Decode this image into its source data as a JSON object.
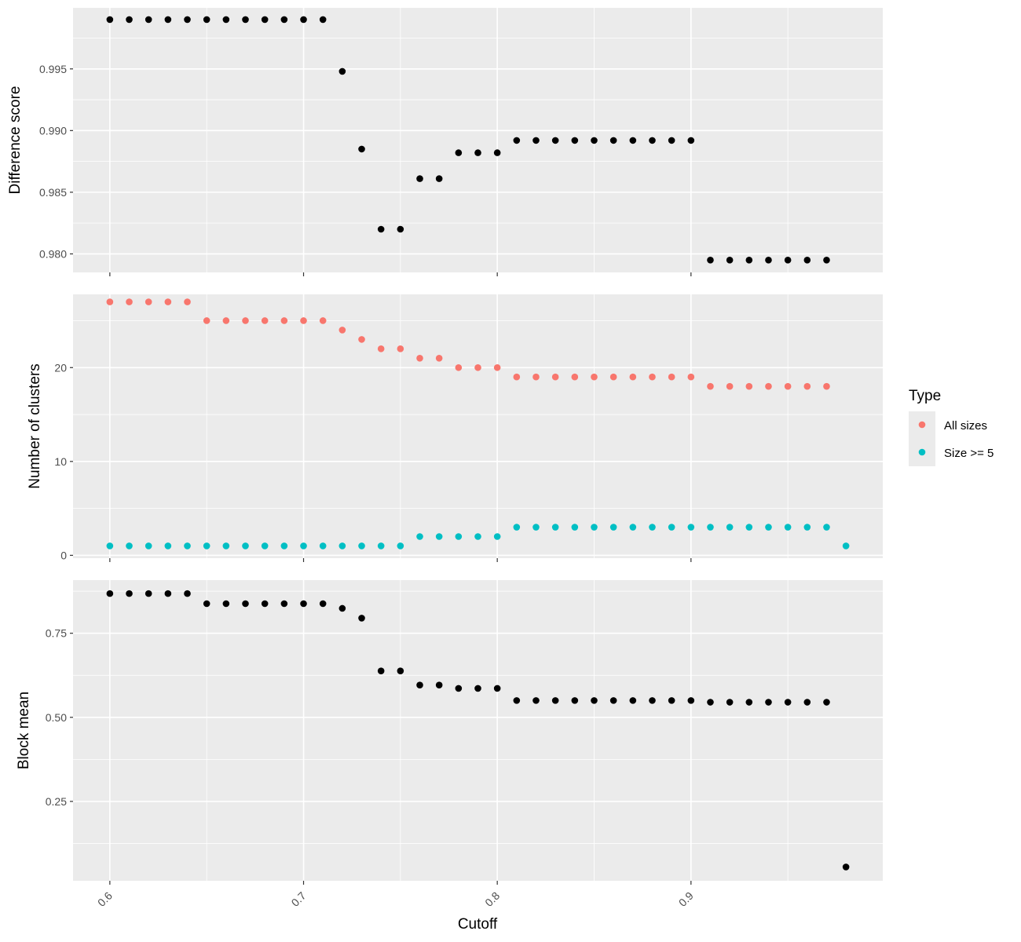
{
  "chart_data": {
    "type": "scatter",
    "xlabel": "Cutoff",
    "x_ticks": [
      "0.6",
      "0.7",
      "0.8",
      "0.9"
    ],
    "x_tick_values": [
      0.6,
      0.7,
      0.8,
      0.9
    ],
    "xlim": [
      0.581,
      0.999
    ],
    "colors": {
      "all_sizes": "#F8766D",
      "size_ge_5": "#00BFC4",
      "single": "#000000"
    },
    "legend": {
      "title": "Type",
      "entries": [
        {
          "label": "All sizes",
          "color": "#F8766D"
        },
        {
          "label": "Size >= 5",
          "color": "#00BFC4"
        }
      ],
      "placement": "right"
    },
    "panels": [
      {
        "ylabel": "Difference score",
        "ylim": [
          0.9785,
          0.99995
        ],
        "y_ticks": [
          "0.980",
          "0.985",
          "0.990",
          "0.995"
        ],
        "y_tick_values": [
          0.98,
          0.985,
          0.99,
          0.995
        ],
        "series": [
          {
            "color": "#000000",
            "x": [
              0.6,
              0.61,
              0.62,
              0.63,
              0.64,
              0.65,
              0.66,
              0.67,
              0.68,
              0.69,
              0.7,
              0.71,
              0.72,
              0.73,
              0.74,
              0.75,
              0.76,
              0.77,
              0.78,
              0.79,
              0.8,
              0.81,
              0.82,
              0.83,
              0.84,
              0.85,
              0.86,
              0.87,
              0.88,
              0.89,
              0.9,
              0.91,
              0.92,
              0.93,
              0.94,
              0.95,
              0.96,
              0.97
            ],
            "y": [
              0.999,
              0.999,
              0.999,
              0.999,
              0.999,
              0.999,
              0.999,
              0.999,
              0.999,
              0.999,
              0.999,
              0.999,
              0.9948,
              0.9885,
              0.982,
              0.982,
              0.9861,
              0.9861,
              0.9882,
              0.9882,
              0.9882,
              0.9892,
              0.9892,
              0.9892,
              0.9892,
              0.9892,
              0.9892,
              0.9892,
              0.9892,
              0.9892,
              0.9892,
              0.9795,
              0.9795,
              0.9795,
              0.9795,
              0.9795,
              0.9795,
              0.9795
            ]
          }
        ]
      },
      {
        "ylabel": "Number of clusters",
        "ylim": [
          -0.3,
          27.8
        ],
        "y_ticks": [
          "0",
          "10",
          "20"
        ],
        "y_tick_values": [
          0,
          10,
          20
        ],
        "series": [
          {
            "name": "All sizes",
            "color": "#F8766D",
            "x": [
              0.6,
              0.61,
              0.62,
              0.63,
              0.64,
              0.65,
              0.66,
              0.67,
              0.68,
              0.69,
              0.7,
              0.71,
              0.72,
              0.73,
              0.74,
              0.75,
              0.76,
              0.77,
              0.78,
              0.79,
              0.8,
              0.81,
              0.82,
              0.83,
              0.84,
              0.85,
              0.86,
              0.87,
              0.88,
              0.89,
              0.9,
              0.91,
              0.92,
              0.93,
              0.94,
              0.95,
              0.96,
              0.97
            ],
            "y": [
              27,
              27,
              27,
              27,
              27,
              25,
              25,
              25,
              25,
              25,
              25,
              25,
              24,
              23,
              22,
              22,
              21,
              21,
              20,
              20,
              20,
              19,
              19,
              19,
              19,
              19,
              19,
              19,
              19,
              19,
              19,
              18,
              18,
              18,
              18,
              18,
              18,
              18
            ]
          },
          {
            "name": "Size >= 5",
            "color": "#00BFC4",
            "x": [
              0.6,
              0.61,
              0.62,
              0.63,
              0.64,
              0.65,
              0.66,
              0.67,
              0.68,
              0.69,
              0.7,
              0.71,
              0.72,
              0.73,
              0.74,
              0.75,
              0.76,
              0.77,
              0.78,
              0.79,
              0.8,
              0.81,
              0.82,
              0.83,
              0.84,
              0.85,
              0.86,
              0.87,
              0.88,
              0.89,
              0.9,
              0.91,
              0.92,
              0.93,
              0.94,
              0.95,
              0.96,
              0.97,
              0.98
            ],
            "y": [
              1,
              1,
              1,
              1,
              1,
              1,
              1,
              1,
              1,
              1,
              1,
              1,
              1,
              1,
              1,
              1,
              2,
              2,
              2,
              2,
              2,
              3,
              3,
              3,
              3,
              3,
              3,
              3,
              3,
              3,
              3,
              3,
              3,
              3,
              3,
              3,
              3,
              3,
              1
            ]
          }
        ]
      },
      {
        "ylabel": "Block mean",
        "ylim": [
          0.014,
          0.908
        ],
        "y_ticks": [
          "0.25",
          "0.50",
          "0.75"
        ],
        "y_tick_values": [
          0.25,
          0.5,
          0.75
        ],
        "series": [
          {
            "color": "#000000",
            "x": [
              0.6,
              0.61,
              0.62,
              0.63,
              0.64,
              0.65,
              0.66,
              0.67,
              0.68,
              0.69,
              0.7,
              0.71,
              0.72,
              0.73,
              0.74,
              0.75,
              0.76,
              0.77,
              0.78,
              0.79,
              0.8,
              0.81,
              0.82,
              0.83,
              0.84,
              0.85,
              0.86,
              0.87,
              0.88,
              0.89,
              0.9,
              0.91,
              0.92,
              0.93,
              0.94,
              0.95,
              0.96,
              0.97,
              0.98
            ],
            "y": [
              0.868,
              0.868,
              0.868,
              0.868,
              0.868,
              0.838,
              0.838,
              0.838,
              0.838,
              0.838,
              0.838,
              0.838,
              0.824,
              0.795,
              0.638,
              0.638,
              0.596,
              0.596,
              0.586,
              0.586,
              0.586,
              0.55,
              0.55,
              0.55,
              0.55,
              0.55,
              0.55,
              0.55,
              0.55,
              0.55,
              0.55,
              0.545,
              0.545,
              0.545,
              0.545,
              0.545,
              0.545,
              0.545,
              0.055
            ]
          }
        ]
      }
    ]
  }
}
